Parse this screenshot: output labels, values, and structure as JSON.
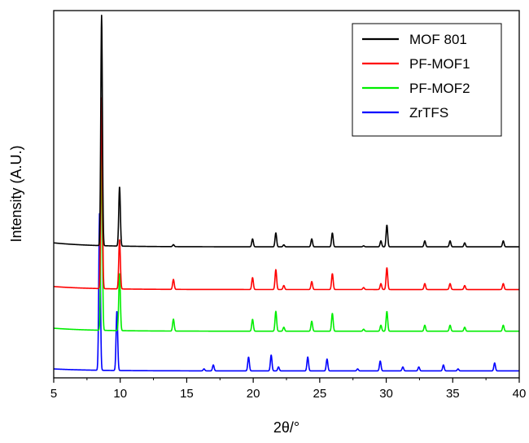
{
  "chart_data": {
    "type": "line",
    "title": "",
    "xlabel": "2θ/°",
    "ylabel": "Intensity (A.U.)",
    "xlim": [
      5,
      40
    ],
    "xticks": [
      5,
      10,
      15,
      20,
      25,
      30,
      35,
      40
    ],
    "y_tick_labels": "none",
    "grid": false,
    "legend_position": "top-right",
    "series": [
      {
        "name": "MOF 801",
        "color": "#000000",
        "baseline": 0.56,
        "background_slope": 0.02,
        "peaks": [
          [
            8.6,
            1.16,
            0.06
          ],
          [
            9.95,
            0.3,
            0.06
          ],
          [
            14.0,
            0.01,
            0.06
          ],
          [
            19.95,
            0.04,
            0.06
          ],
          [
            21.7,
            0.07,
            0.06
          ],
          [
            22.3,
            0.01,
            0.06
          ],
          [
            24.4,
            0.04,
            0.06
          ],
          [
            25.95,
            0.07,
            0.06
          ],
          [
            28.3,
            0.005,
            0.06
          ],
          [
            29.6,
            0.03,
            0.06
          ],
          [
            30.05,
            0.11,
            0.06
          ],
          [
            32.9,
            0.03,
            0.06
          ],
          [
            34.8,
            0.03,
            0.06
          ],
          [
            35.9,
            0.02,
            0.06
          ],
          [
            38.8,
            0.03,
            0.06
          ]
        ]
      },
      {
        "name": "PF-MOF1",
        "color": "#ff0000",
        "baseline": 0.345,
        "background_slope": 0.015,
        "peaks": [
          [
            8.6,
            0.96,
            0.06
          ],
          [
            9.95,
            0.25,
            0.06
          ],
          [
            14.0,
            0.05,
            0.06
          ],
          [
            19.95,
            0.06,
            0.06
          ],
          [
            21.7,
            0.1,
            0.06
          ],
          [
            22.3,
            0.02,
            0.06
          ],
          [
            24.4,
            0.04,
            0.06
          ],
          [
            25.95,
            0.08,
            0.06
          ],
          [
            28.3,
            0.01,
            0.06
          ],
          [
            29.6,
            0.03,
            0.06
          ],
          [
            30.05,
            0.11,
            0.06
          ],
          [
            32.9,
            0.03,
            0.06
          ],
          [
            34.8,
            0.03,
            0.06
          ],
          [
            35.9,
            0.02,
            0.06
          ],
          [
            38.8,
            0.03,
            0.06
          ]
        ]
      },
      {
        "name": "PF-MOF2",
        "color": "#00ee00",
        "baseline": 0.135,
        "background_slope": 0.015,
        "peaks": [
          [
            8.6,
            0.9,
            0.06
          ],
          [
            9.95,
            0.29,
            0.06
          ],
          [
            14.0,
            0.06,
            0.06
          ],
          [
            19.95,
            0.06,
            0.06
          ],
          [
            21.7,
            0.1,
            0.06
          ],
          [
            22.3,
            0.02,
            0.06
          ],
          [
            24.4,
            0.05,
            0.06
          ],
          [
            25.95,
            0.09,
            0.06
          ],
          [
            28.3,
            0.01,
            0.06
          ],
          [
            29.6,
            0.03,
            0.06
          ],
          [
            30.05,
            0.1,
            0.06
          ],
          [
            32.9,
            0.03,
            0.06
          ],
          [
            34.8,
            0.03,
            0.06
          ],
          [
            35.9,
            0.02,
            0.06
          ],
          [
            38.8,
            0.03,
            0.06
          ]
        ]
      },
      {
        "name": "ZrTFS",
        "color": "#0000ff",
        "baseline": -0.065,
        "background_slope": 0.01,
        "peaks": [
          [
            8.45,
            0.8,
            0.06
          ],
          [
            9.75,
            0.3,
            0.06
          ],
          [
            16.3,
            0.01,
            0.06
          ],
          [
            17.0,
            0.03,
            0.06
          ],
          [
            19.65,
            0.07,
            0.06
          ],
          [
            21.35,
            0.08,
            0.06
          ],
          [
            21.9,
            0.02,
            0.06
          ],
          [
            24.1,
            0.07,
            0.06
          ],
          [
            25.55,
            0.06,
            0.06
          ],
          [
            27.85,
            0.01,
            0.06
          ],
          [
            29.55,
            0.05,
            0.06
          ],
          [
            31.25,
            0.02,
            0.06
          ],
          [
            32.45,
            0.02,
            0.06
          ],
          [
            34.3,
            0.03,
            0.06
          ],
          [
            35.4,
            0.01,
            0.06
          ],
          [
            38.15,
            0.04,
            0.06
          ]
        ]
      }
    ]
  }
}
